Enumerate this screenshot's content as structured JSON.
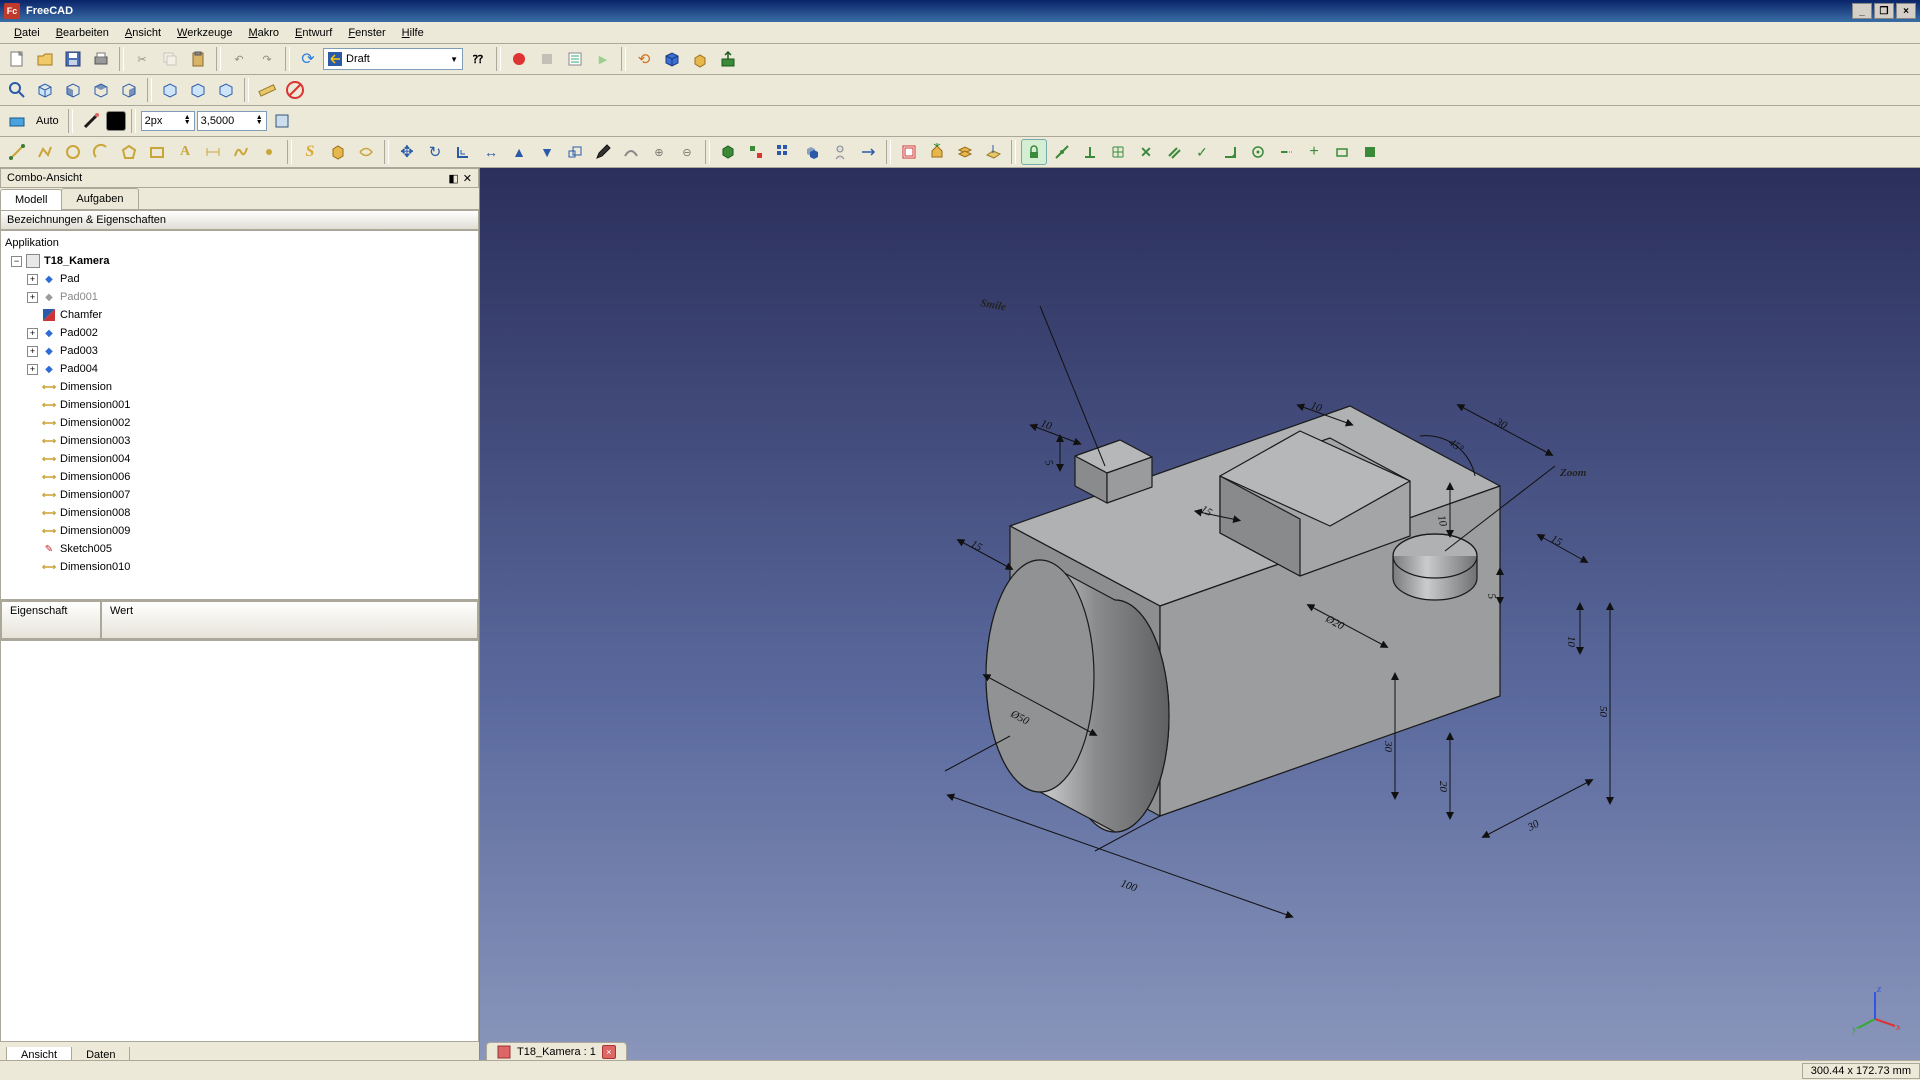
{
  "app": {
    "title": "FreeCAD"
  },
  "menu": [
    "Datei",
    "Bearbeiten",
    "Ansicht",
    "Werkzeuge",
    "Makro",
    "Entwurf",
    "Fenster",
    "Hilfe"
  ],
  "workbench": "Draft",
  "toolbar2_auto": "Auto",
  "line_width_input": "2px",
  "dim_scale_input": "3,5000",
  "side": {
    "panel_title": "Combo-Ansicht",
    "tabs": [
      "Modell",
      "Aufgaben"
    ],
    "tree_header": "Bezeichnungen & Eigenschaften",
    "root": "Applikation",
    "doc": "T18_Kamera",
    "items": [
      {
        "type": "pad",
        "label": "Pad",
        "expand": true
      },
      {
        "type": "pad-grey",
        "label": "Pad001",
        "expand": true
      },
      {
        "type": "chamfer",
        "label": "Chamfer",
        "expand": false
      },
      {
        "type": "pad",
        "label": "Pad002",
        "expand": true
      },
      {
        "type": "pad",
        "label": "Pad003",
        "expand": true
      },
      {
        "type": "pad",
        "label": "Pad004",
        "expand": true
      },
      {
        "type": "dim",
        "label": "Dimension",
        "expand": false
      },
      {
        "type": "dim",
        "label": "Dimension001",
        "expand": false
      },
      {
        "type": "dim",
        "label": "Dimension002",
        "expand": false
      },
      {
        "type": "dim",
        "label": "Dimension003",
        "expand": false
      },
      {
        "type": "dim",
        "label": "Dimension004",
        "expand": false
      },
      {
        "type": "dim",
        "label": "Dimension006",
        "expand": false
      },
      {
        "type": "dim",
        "label": "Dimension007",
        "expand": false
      },
      {
        "type": "dim",
        "label": "Dimension008",
        "expand": false
      },
      {
        "type": "dim",
        "label": "Dimension009",
        "expand": false
      },
      {
        "type": "sketch",
        "label": "Sketch005",
        "expand": false
      },
      {
        "type": "dim",
        "label": "Dimension010",
        "expand": false
      }
    ],
    "prop_col1": "Eigenschaft",
    "prop_col2": "Wert",
    "bottom_tabs": [
      "Ansicht",
      "Daten"
    ]
  },
  "viewport": {
    "tab_label": "T18_Kamera : 1",
    "labels": {
      "smile": "Smile",
      "zoom": "Zoom"
    },
    "dimensions": {
      "d100": "100",
      "d50a": "Ø50",
      "d30a": "30",
      "d20a": "20",
      "d50b": "50",
      "d30b": "30",
      "d15a": "15",
      "d10a": "10",
      "d5": "5",
      "d15b": "15",
      "d10b": "10",
      "d45": "45°",
      "d30c": "30",
      "d10c": "10",
      "d15c": "15",
      "d5b": "5",
      "d10d": "10",
      "d20b": "Ø20"
    },
    "colors": {
      "model_face": "#9fa0a2",
      "model_face_light": "#b8b9bb",
      "model_face_dark": "#7f8082",
      "edge": "#1a1a1a",
      "dim_line": "#111",
      "bg_top": "#2b2f5b",
      "bg_bot": "#8a96bb"
    }
  },
  "status": {
    "coord": "300.44 x 172.73 mm"
  },
  "axis_labels": {
    "x": "x",
    "y": "y",
    "z": "z"
  }
}
